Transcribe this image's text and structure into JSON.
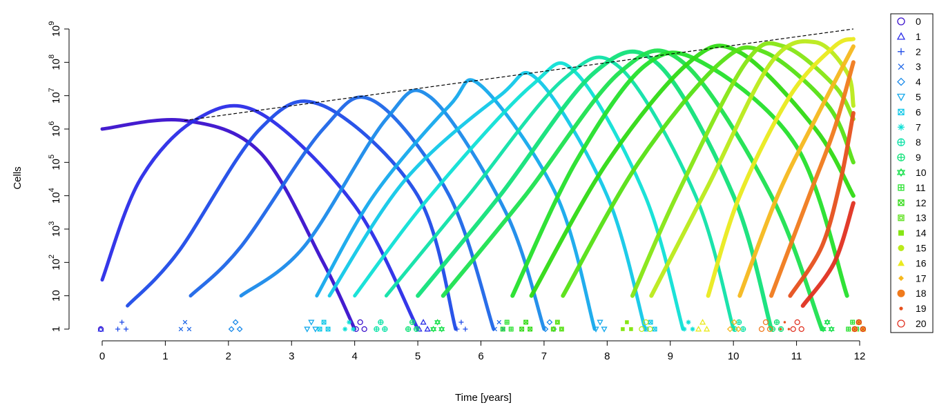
{
  "chart_data": {
    "type": "line",
    "title": "",
    "xlabel": "Time [years]",
    "ylabel": "Cells",
    "xlim": [
      0,
      12
    ],
    "ylim": [
      1,
      1000000000
    ],
    "y_scale": "log",
    "grid": false,
    "legend_position": "top-right",
    "x_ticks": [
      "0",
      "1",
      "2",
      "3",
      "4",
      "5",
      "6",
      "7",
      "8",
      "9",
      "10",
      "11",
      "12"
    ],
    "y_ticks": [
      {
        "value": 1,
        "label": "1"
      },
      {
        "value": 10,
        "label": "10"
      },
      {
        "value": 100,
        "label": "10",
        "exp": "2"
      },
      {
        "value": 1000,
        "label": "10",
        "exp": "3"
      },
      {
        "value": 10000,
        "label": "10",
        "exp": "4"
      },
      {
        "value": 100000,
        "label": "10",
        "exp": "5"
      },
      {
        "value": 1000000,
        "label": "10",
        "exp": "6"
      },
      {
        "value": 10000000,
        "label": "10",
        "exp": "7"
      },
      {
        "value": 100000000,
        "label": "10",
        "exp": "8"
      },
      {
        "value": 1000000000,
        "label": "10",
        "exp": "9"
      }
    ],
    "envelope": {
      "style": "dashed",
      "color": "#000000",
      "x": [
        1.3,
        11.9
      ],
      "y": [
        1800000,
        1000000000
      ]
    },
    "series": [
      {
        "name": "0",
        "color": "#3A10CC",
        "marker": "circle",
        "x": [
          0.0,
          1.3,
          2.5,
          3.5,
          4.0
        ],
        "y": [
          1000000,
          1800000,
          200000,
          100,
          1
        ]
      },
      {
        "name": "1",
        "color": "#2A2CE8",
        "marker": "triangle",
        "x": [
          0.0,
          0.6,
          1.5,
          2.5,
          4.0,
          5.0
        ],
        "y": [
          30,
          30000,
          2000000,
          3000000,
          5000,
          1
        ]
      },
      {
        "name": "2",
        "color": "#1F4BE8",
        "marker": "plus",
        "x": [
          0.4,
          1.2,
          2.5,
          3.5,
          5.0,
          5.6
        ],
        "y": [
          5,
          200,
          1000000,
          5000000,
          10000,
          1
        ]
      },
      {
        "name": "3",
        "color": "#1D66E8",
        "marker": "x",
        "x": [
          1.4,
          2.2,
          3.5,
          4.3,
          5.5,
          6.2
        ],
        "y": [
          10,
          300,
          1000000,
          7000000,
          10000,
          1
        ]
      },
      {
        "name": "4",
        "color": "#1A8AEA",
        "marker": "diamond",
        "x": [
          2.2,
          3.2,
          4.5,
          5.2,
          6.4,
          7.0
        ],
        "y": [
          10,
          300,
          2000000,
          9000000,
          3000,
          1
        ]
      },
      {
        "name": "5",
        "color": "#15A9EC",
        "marker": "triangle-down",
        "x": [
          3.4,
          4.3,
          5.5,
          6.0,
          7.2,
          7.8
        ],
        "y": [
          10,
          10000,
          5000000,
          20000000,
          10000,
          1
        ]
      },
      {
        "name": "6",
        "color": "#12C8E8",
        "marker": "square-x",
        "x": [
          3.6,
          4.8,
          6.3,
          6.9,
          8.0,
          8.6
        ],
        "y": [
          10,
          30000,
          10000000,
          30000000,
          10000,
          1
        ]
      },
      {
        "name": "7",
        "color": "#0FE0D6",
        "marker": "asterisk",
        "x": [
          4.0,
          5.2,
          6.8,
          7.5,
          8.6,
          9.2
        ],
        "y": [
          10,
          10000,
          20000000,
          50000000,
          10000,
          1
        ]
      },
      {
        "name": "8",
        "color": "#0FE2A8",
        "marker": "circle-plus",
        "x": [
          4.5,
          5.8,
          7.3,
          8.2,
          9.4,
          10.0
        ],
        "y": [
          10,
          10000,
          30000000,
          70000000,
          10000,
          1
        ]
      },
      {
        "name": "9",
        "color": "#12E27A",
        "marker": "circle-plus",
        "x": [
          5.0,
          6.3,
          7.8,
          8.8,
          10.0,
          10.6
        ],
        "y": [
          10,
          10000,
          50000000,
          90000000,
          10000,
          1
        ]
      },
      {
        "name": "10",
        "color": "#1EE150",
        "marker": "star-of-david",
        "x": [
          5.4,
          6.7,
          8.2,
          9.2,
          10.6,
          11.4
        ],
        "y": [
          10,
          10000,
          50000000,
          100000000,
          10000,
          1
        ]
      },
      {
        "name": "11",
        "color": "#25E02C",
        "marker": "square-plus",
        "x": [
          6.5,
          7.5,
          8.6,
          9.5,
          11.0,
          11.8
        ],
        "y": [
          10,
          100000,
          80000000,
          100000000,
          300000,
          10
        ]
      },
      {
        "name": "12",
        "color": "#30DA14",
        "marker": "square-x",
        "x": [
          6.8,
          8.0,
          9.3,
          10.1,
          11.3,
          11.9
        ],
        "y": [
          10,
          100000,
          100000000,
          200000000,
          1000000,
          10000
        ]
      },
      {
        "name": "13",
        "color": "#56E014",
        "marker": "square-cross",
        "x": [
          7.3,
          8.5,
          9.8,
          10.5,
          11.5,
          11.9
        ],
        "y": [
          10,
          100000,
          100000000,
          200000000,
          5000000,
          100000
        ]
      },
      {
        "name": "14",
        "color": "#86E614",
        "marker": "square",
        "x": [
          8.4,
          9.1,
          10.2,
          10.8,
          11.6,
          11.9
        ],
        "y": [
          10,
          10000,
          100000000,
          300000000,
          20000000,
          2000000
        ]
      },
      {
        "name": "15",
        "color": "#BAEA1A",
        "marker": "circle",
        "x": [
          8.7,
          9.6,
          10.6,
          11.3,
          11.8,
          11.9
        ],
        "y": [
          10,
          20000,
          100000000,
          400000000,
          50000000,
          5000000
        ]
      },
      {
        "name": "16",
        "color": "#EAEA1E",
        "marker": "triangle",
        "x": [
          9.6,
          10.1,
          10.9,
          11.6,
          11.9
        ],
        "y": [
          10,
          10000,
          10000000,
          300000000,
          500000000
        ]
      },
      {
        "name": "17",
        "color": "#F6B81E",
        "marker": "diamond",
        "x": [
          10.1,
          10.7,
          11.3,
          11.9
        ],
        "y": [
          10,
          10000,
          2000000,
          300000000
        ]
      },
      {
        "name": "18",
        "color": "#F07A1C",
        "marker": "circle",
        "x": [
          10.6,
          11.2,
          11.6,
          11.9
        ],
        "y": [
          10,
          10000,
          1000000,
          100000000
        ]
      },
      {
        "name": "19",
        "color": "#E6501C",
        "marker": "dot",
        "x": [
          10.9,
          11.4,
          11.7,
          11.9
        ],
        "y": [
          10,
          300,
          30000,
          3000000
        ]
      },
      {
        "name": "20",
        "color": "#E03020",
        "marker": "circle-open",
        "x": [
          11.1,
          11.6,
          11.9
        ],
        "y": [
          5,
          100,
          6000
        ]
      }
    ]
  }
}
